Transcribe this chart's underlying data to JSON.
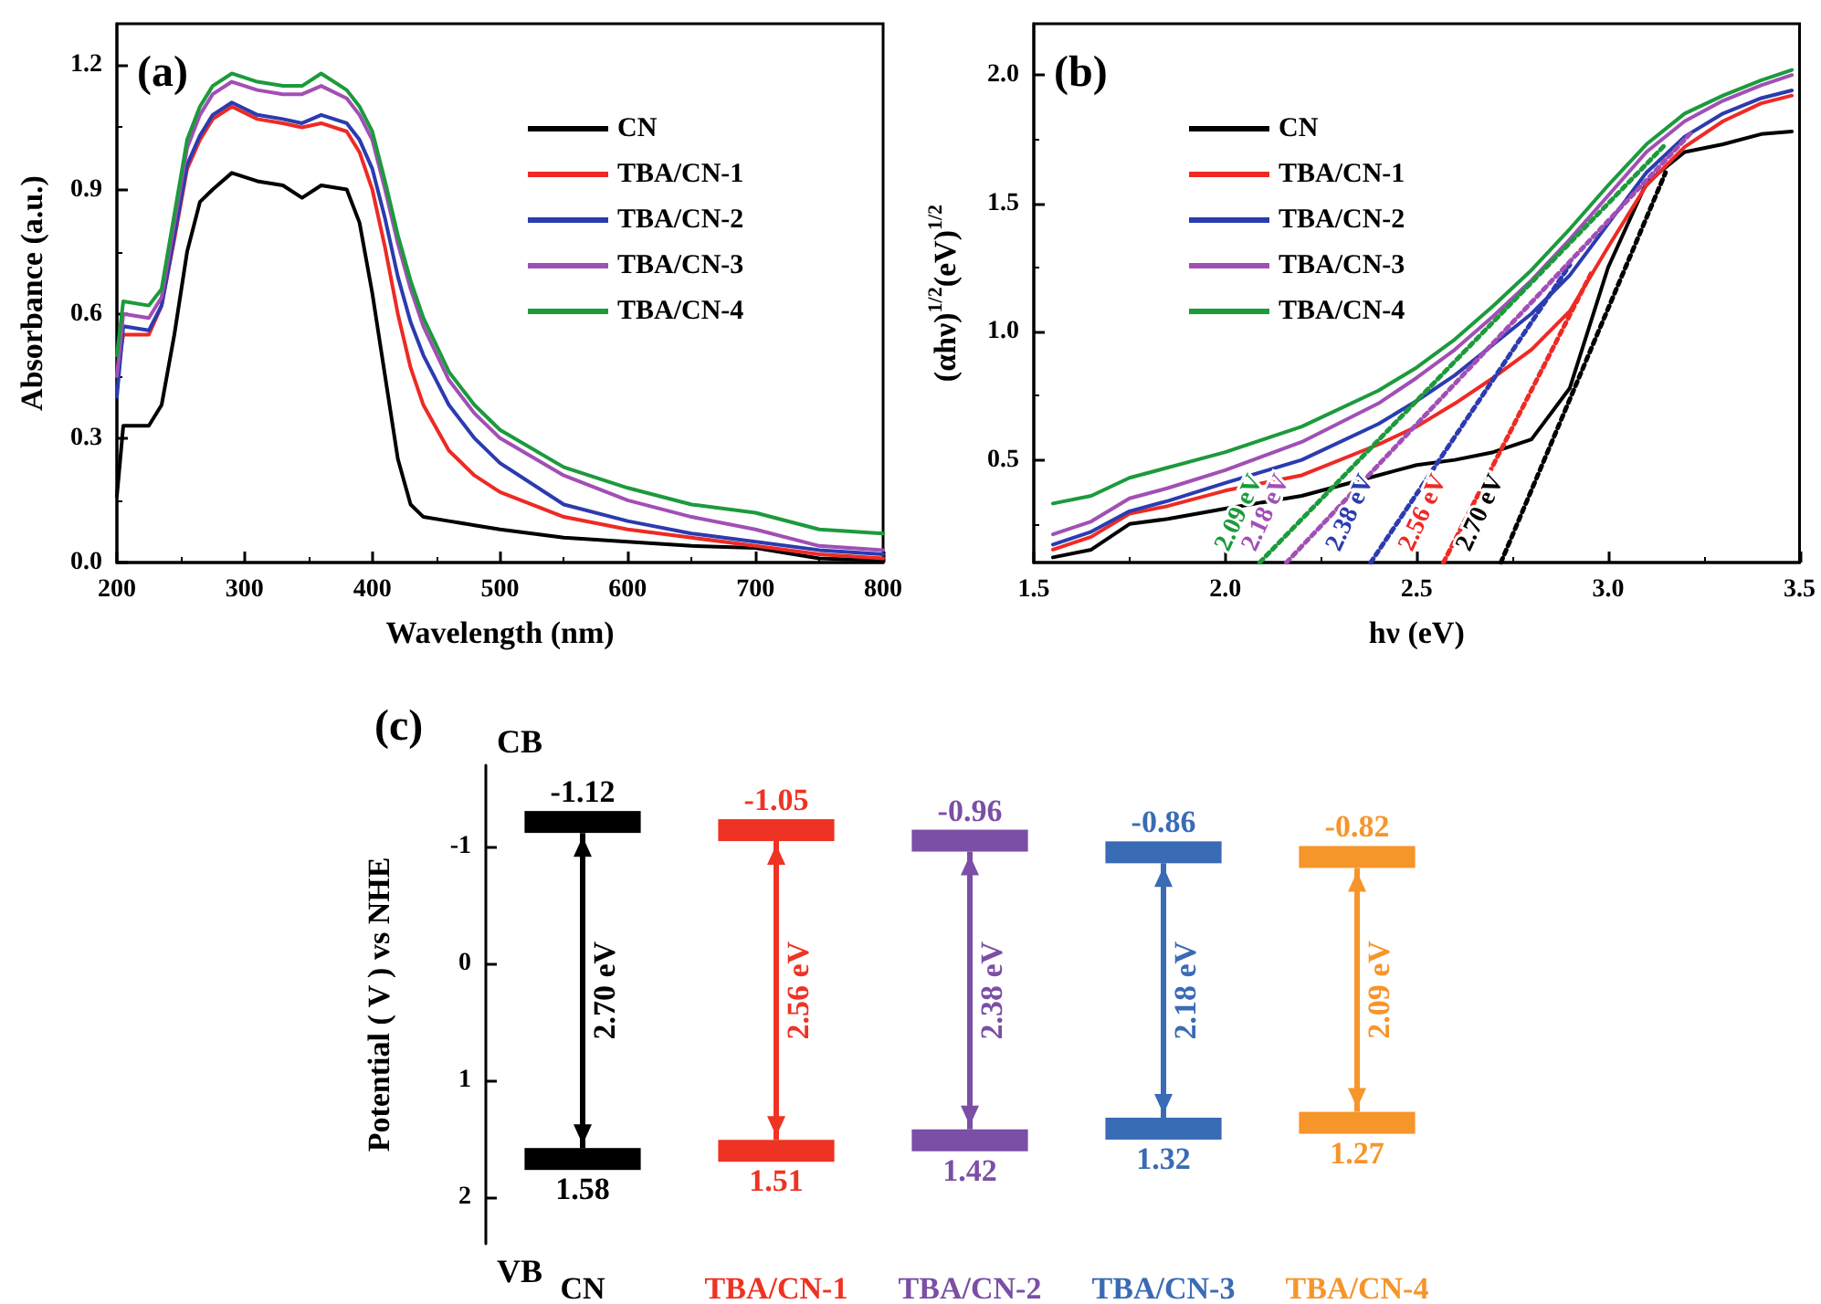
{
  "chart_data": [
    {
      "type": "line",
      "title": "(a)",
      "xlabel": "Wavelength (nm)",
      "ylabel": "Absorbance (a.u.)",
      "x": [
        200,
        205,
        225,
        235,
        245,
        255,
        265,
        275,
        290,
        310,
        330,
        345,
        360,
        380,
        390,
        400,
        410,
        420,
        430,
        440,
        460,
        480,
        500,
        550,
        600,
        650,
        700,
        750,
        800
      ],
      "series": [
        {
          "name": "CN",
          "color": "#000000",
          "values": [
            0.16,
            0.33,
            0.33,
            0.38,
            0.55,
            0.75,
            0.87,
            0.9,
            0.94,
            0.92,
            0.91,
            0.88,
            0.91,
            0.9,
            0.82,
            0.65,
            0.45,
            0.25,
            0.14,
            0.11,
            0.1,
            0.09,
            0.08,
            0.06,
            0.05,
            0.04,
            0.035,
            0.01,
            0.005
          ]
        },
        {
          "name": "TBA/CN-1",
          "color": "#ee2a24",
          "values": [
            0.45,
            0.55,
            0.55,
            0.62,
            0.78,
            0.95,
            1.02,
            1.07,
            1.1,
            1.07,
            1.06,
            1.05,
            1.06,
            1.04,
            0.99,
            0.9,
            0.76,
            0.6,
            0.47,
            0.38,
            0.27,
            0.21,
            0.17,
            0.11,
            0.08,
            0.06,
            0.04,
            0.02,
            0.01
          ]
        },
        {
          "name": "TBA/CN-2",
          "color": "#2b3bb0",
          "values": [
            0.4,
            0.57,
            0.56,
            0.62,
            0.79,
            0.96,
            1.03,
            1.08,
            1.11,
            1.08,
            1.07,
            1.06,
            1.08,
            1.06,
            1.02,
            0.95,
            0.83,
            0.69,
            0.58,
            0.5,
            0.38,
            0.3,
            0.24,
            0.14,
            0.1,
            0.07,
            0.05,
            0.03,
            0.02
          ]
        },
        {
          "name": "TBA/CN-3",
          "color": "#a14fb5",
          "values": [
            0.45,
            0.6,
            0.59,
            0.64,
            0.82,
            1.0,
            1.08,
            1.13,
            1.16,
            1.14,
            1.13,
            1.13,
            1.15,
            1.12,
            1.08,
            1.02,
            0.9,
            0.77,
            0.66,
            0.57,
            0.44,
            0.36,
            0.3,
            0.21,
            0.15,
            0.11,
            0.08,
            0.04,
            0.03
          ]
        },
        {
          "name": "TBA/CN-4",
          "color": "#1c9a3c",
          "values": [
            0.5,
            0.63,
            0.62,
            0.66,
            0.84,
            1.02,
            1.1,
            1.15,
            1.18,
            1.16,
            1.15,
            1.15,
            1.18,
            1.14,
            1.1,
            1.04,
            0.92,
            0.79,
            0.68,
            0.59,
            0.46,
            0.38,
            0.32,
            0.23,
            0.18,
            0.14,
            0.12,
            0.08,
            0.07
          ]
        }
      ],
      "xlim": [
        200,
        800
      ],
      "xticks": [
        200,
        300,
        400,
        500,
        600,
        700,
        800
      ],
      "ylim": [
        0,
        1.3
      ],
      "yticks": [
        {
          "value": 0,
          "label": "0.0"
        },
        0.3,
        0.6,
        0.9,
        1.2
      ],
      "legend": "top right"
    },
    {
      "type": "line",
      "title": "(b)",
      "xlabel": "hν (eV)",
      "ylabel": "(αhν)$^{1/2}$(eV)$^{1/2}$",
      "x": [
        1.55,
        1.65,
        1.75,
        1.85,
        2.0,
        2.2,
        2.4,
        2.5,
        2.6,
        2.7,
        2.8,
        2.9,
        3.0,
        3.1,
        3.2,
        3.3,
        3.4,
        3.48
      ],
      "series": [
        {
          "name": "CN",
          "color": "#000000",
          "values": [
            0.12,
            0.15,
            0.25,
            0.27,
            0.31,
            0.36,
            0.44,
            0.48,
            0.5,
            0.53,
            0.58,
            0.78,
            1.25,
            1.58,
            1.7,
            1.73,
            1.77,
            1.78
          ]
        },
        {
          "name": "TBA/CN-1",
          "color": "#ee2a24",
          "values": [
            0.15,
            0.2,
            0.29,
            0.32,
            0.38,
            0.44,
            0.56,
            0.63,
            0.72,
            0.82,
            0.93,
            1.08,
            1.33,
            1.57,
            1.72,
            1.82,
            1.89,
            1.92
          ]
        },
        {
          "name": "TBA/CN-2",
          "color": "#2b3bb0",
          "values": [
            0.17,
            0.22,
            0.3,
            0.34,
            0.41,
            0.5,
            0.64,
            0.73,
            0.83,
            0.95,
            1.07,
            1.22,
            1.42,
            1.62,
            1.76,
            1.85,
            1.91,
            1.94
          ]
        },
        {
          "name": "TBA/CN-3",
          "color": "#a14fb5",
          "values": [
            0.21,
            0.26,
            0.35,
            0.39,
            0.46,
            0.57,
            0.72,
            0.82,
            0.93,
            1.06,
            1.2,
            1.36,
            1.53,
            1.7,
            1.82,
            1.9,
            1.96,
            2.0
          ]
        },
        {
          "name": "TBA/CN-4",
          "color": "#1c9a3c",
          "values": [
            0.33,
            0.36,
            0.43,
            0.47,
            0.53,
            0.63,
            0.77,
            0.86,
            0.97,
            1.1,
            1.24,
            1.4,
            1.57,
            1.73,
            1.85,
            1.92,
            1.98,
            2.02
          ]
        },
        {
          "type": "line",
          "color": "#000000",
          "line_style": "dotted",
          "x": [
            2.72,
            3.15
          ],
          "values": [
            0.1,
            1.62
          ]
        },
        {
          "type": "line",
          "color": "#ee2a24",
          "line_style": "dotted",
          "x": [
            2.57,
            2.96
          ],
          "values": [
            0.1,
            1.24
          ]
        },
        {
          "type": "line",
          "color": "#2b3bb0",
          "line_style": "dotted",
          "x": [
            2.38,
            2.9
          ],
          "values": [
            0.1,
            1.26
          ]
        },
        {
          "type": "line",
          "color": "#a14fb5",
          "line_style": "dotted",
          "x": [
            2.16,
            3.22
          ],
          "values": [
            0.1,
            1.78
          ]
        },
        {
          "type": "line",
          "color": "#1c9a3c",
          "line_style": "dotted",
          "x": [
            2.09,
            3.15
          ],
          "values": [
            0.1,
            1.73
          ]
        }
      ],
      "annotations": [
        {
          "text": "2.09 eV",
          "x": 2.09,
          "y": 0.1
        },
        {
          "text": "2.18 eV",
          "x": 2.16,
          "y": 0.1
        },
        {
          "text": "2.38 eV",
          "x": 2.38,
          "y": 0.1
        },
        {
          "text": "2.56 eV",
          "x": 2.57,
          "y": 0.1
        },
        {
          "text": "2.70 eV",
          "x": 2.72,
          "y": 0.1
        }
      ],
      "xlim": [
        1.5,
        3.5
      ],
      "xticks": [
        1.5,
        {
          "value": 2,
          "label": "2.0"
        },
        2.5,
        {
          "value": 3,
          "label": "3.0"
        },
        3.5
      ],
      "ylim": [
        0.1,
        2.2
      ],
      "yticks": [
        0.5,
        {
          "value": 1,
          "label": "1.0"
        },
        1.5,
        {
          "value": 2,
          "label": "2.0"
        }
      ],
      "legend": "top left"
    },
    {
      "type": "bar",
      "title": "(c)",
      "ylabel": "Potential ( V ) vs NHE",
      "categories": [
        "CN",
        "TBA/CN-1",
        "TBA/CN-2",
        "TBA/CN-3",
        "TBA/CN-4"
      ],
      "base": [
        -1.12,
        -1.05,
        -0.96,
        -0.86,
        -0.82
      ],
      "values": [
        2.7,
        2.56,
        2.38,
        2.18,
        2.09
      ],
      "colors": [
        "#000000",
        "#ee3324",
        "#7a4fa5",
        "#3a6bb5",
        "#f6952a"
      ],
      "value_labels": [
        "2.70 eV",
        "2.56 eV",
        "2.38 eV",
        "2.18 eV",
        "2.09 eV"
      ],
      "annotations": [
        "CB",
        "VB",
        {
          "text": "-1.12",
          "x": "CN",
          "y": -1.12
        },
        {
          "text": "-1.05",
          "x": "TBA/CN-1",
          "y": -1.05
        },
        {
          "text": "-0.96",
          "x": "TBA/CN-2",
          "y": -0.96
        },
        {
          "text": "-0.86",
          "x": "TBA/CN-3",
          "y": -0.86
        },
        {
          "text": "-0.82",
          "x": "TBA/CN-4",
          "y": -0.82
        },
        {
          "text": "1.58",
          "x": "CN",
          "y": 1.58
        },
        {
          "text": "1.51",
          "x": "TBA/CN-1",
          "y": 1.51
        },
        {
          "text": "1.42",
          "x": "TBA/CN-2",
          "y": 1.42
        },
        {
          "text": "1.32",
          "x": "TBA/CN-3",
          "y": 1.32
        },
        {
          "text": "1.27",
          "x": "TBA/CN-4",
          "y": 1.27
        }
      ],
      "ylim": [
        2.4,
        -1.7
      ],
      "yticks": [
        -1,
        0,
        1,
        2
      ]
    }
  ]
}
